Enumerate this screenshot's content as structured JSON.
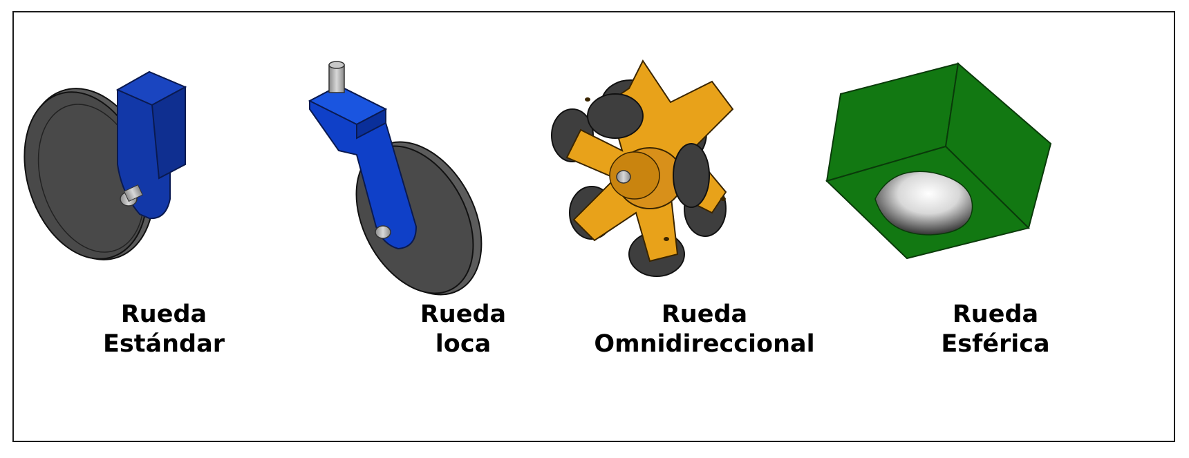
{
  "wheels": [
    {
      "line1": "Rueda",
      "line2": "Estándar",
      "icon": "standard-wheel-icon",
      "color": "#1238a8"
    },
    {
      "line1": "Rueda",
      "line2": "loca",
      "icon": "caster-wheel-icon",
      "color": "#0f40c8"
    },
    {
      "line1": "Rueda",
      "line2": "Omnidireccional",
      "icon": "omni-wheel-icon",
      "color": "#e8a21a"
    },
    {
      "line1": "Rueda",
      "line2": "Esférica",
      "icon": "ball-caster-icon",
      "color": "#127812"
    }
  ],
  "colors": {
    "tire": "#4a4a4a",
    "tire_side": "#5c5c5c",
    "axle": "#b0b0b0",
    "outline": "#111111"
  }
}
